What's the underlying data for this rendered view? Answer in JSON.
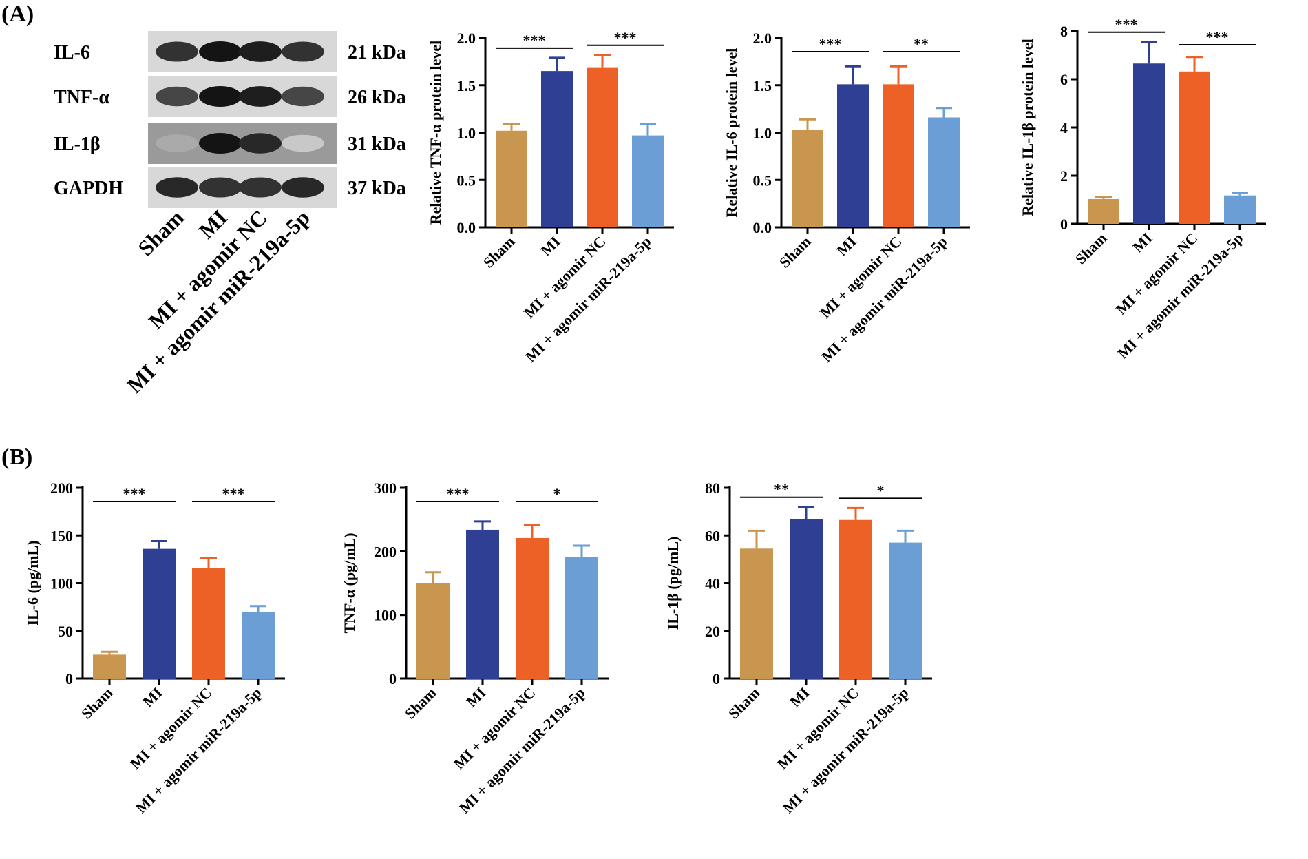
{
  "panels": {
    "a": "(A)",
    "b": "(B)"
  },
  "groups": [
    "Sham",
    "MI",
    "MI + agomir NC",
    "MI + agomir miR-219a-5p"
  ],
  "colors": [
    "#C8964E",
    "#2E3F94",
    "#EE6126",
    "#6A9ED5"
  ],
  "blot": {
    "rows": [
      {
        "name": "IL-6",
        "kda": "21 kDa",
        "intensity": [
          0.85,
          1.0,
          0.95,
          0.85
        ]
      },
      {
        "name": "TNF-α",
        "kda": "26 kDa",
        "intensity": [
          0.75,
          1.0,
          0.95,
          0.75
        ]
      },
      {
        "name": "IL-1β",
        "kda": "31 kDa",
        "intensity": [
          0.25,
          1.0,
          0.9,
          0.1
        ]
      },
      {
        "name": "GAPDH",
        "kda": "37 kDa",
        "intensity": [
          0.9,
          0.85,
          0.85,
          0.9
        ]
      }
    ]
  },
  "chart_data": [
    {
      "type": "bar",
      "ylabel": "Relative TNF-α protein level",
      "ylim": [
        0,
        2.0
      ],
      "ticks": [
        0,
        0.5,
        1.0,
        1.5,
        2.0
      ],
      "tick_labels": [
        "0.0",
        "0.5",
        "1.0",
        "1.5",
        "2.0"
      ],
      "values": [
        1.02,
        1.65,
        1.69,
        0.97
      ],
      "errors": [
        0.07,
        0.14,
        0.13,
        0.12
      ],
      "sig": [
        {
          "from": 0,
          "to": 1,
          "label": "***"
        },
        {
          "from": 2,
          "to": 3,
          "label": "***"
        }
      ]
    },
    {
      "type": "bar",
      "ylabel": "Relative IL-6 protein level",
      "ylim": [
        0,
        2.0
      ],
      "ticks": [
        0,
        0.5,
        1.0,
        1.5,
        2.0
      ],
      "tick_labels": [
        "0.0",
        "0.5",
        "1.0",
        "1.5",
        "2.0"
      ],
      "values": [
        1.03,
        1.51,
        1.51,
        1.16
      ],
      "errors": [
        0.11,
        0.19,
        0.19,
        0.1
      ],
      "sig": [
        {
          "from": 0,
          "to": 1,
          "label": "***"
        },
        {
          "from": 2,
          "to": 3,
          "label": "**"
        }
      ]
    },
    {
      "type": "bar",
      "ylabel": "Relative IL-1β protein level",
      "ylim": [
        0,
        8
      ],
      "ticks": [
        0,
        2,
        4,
        6,
        8
      ],
      "tick_labels": [
        "0",
        "2",
        "4",
        "6",
        "8"
      ],
      "values": [
        1.03,
        6.65,
        6.32,
        1.18
      ],
      "errors": [
        0.07,
        0.9,
        0.6,
        0.1
      ],
      "sig": [
        {
          "from": 0,
          "to": 1,
          "label": "***"
        },
        {
          "from": 2,
          "to": 3,
          "label": "***"
        }
      ]
    },
    {
      "type": "bar",
      "ylabel": "IL-6 (pg/mL)",
      "ylim": [
        0,
        200
      ],
      "ticks": [
        0,
        50,
        100,
        150,
        200
      ],
      "tick_labels": [
        "0",
        "50",
        "100",
        "150",
        "200"
      ],
      "values": [
        25,
        136,
        116,
        70
      ],
      "errors": [
        3,
        8,
        10,
        6
      ],
      "sig": [
        {
          "from": 0,
          "to": 1,
          "label": "***"
        },
        {
          "from": 2,
          "to": 3,
          "label": "***"
        }
      ]
    },
    {
      "type": "bar",
      "ylabel": "TNF-α (pg/mL)",
      "ylim": [
        0,
        300
      ],
      "ticks": [
        0,
        100,
        200,
        300
      ],
      "tick_labels": [
        "0",
        "100",
        "200",
        "300"
      ],
      "values": [
        150,
        234,
        221,
        191
      ],
      "errors": [
        17,
        13,
        20,
        18
      ],
      "sig": [
        {
          "from": 0,
          "to": 1,
          "label": "***"
        },
        {
          "from": 2,
          "to": 3,
          "label": "*"
        }
      ]
    },
    {
      "type": "bar",
      "ylabel": "IL-1β (pg/mL)",
      "ylim": [
        0,
        80
      ],
      "ticks": [
        0,
        20,
        40,
        60,
        80
      ],
      "tick_labels": [
        "0",
        "20",
        "40",
        "60",
        "80"
      ],
      "values": [
        54.5,
        67,
        66.5,
        57
      ],
      "errors": [
        7.5,
        5,
        5,
        5
      ],
      "sig": [
        {
          "from": 0,
          "to": 1,
          "label": "**"
        },
        {
          "from": 2,
          "to": 3,
          "label": "*"
        }
      ]
    }
  ]
}
